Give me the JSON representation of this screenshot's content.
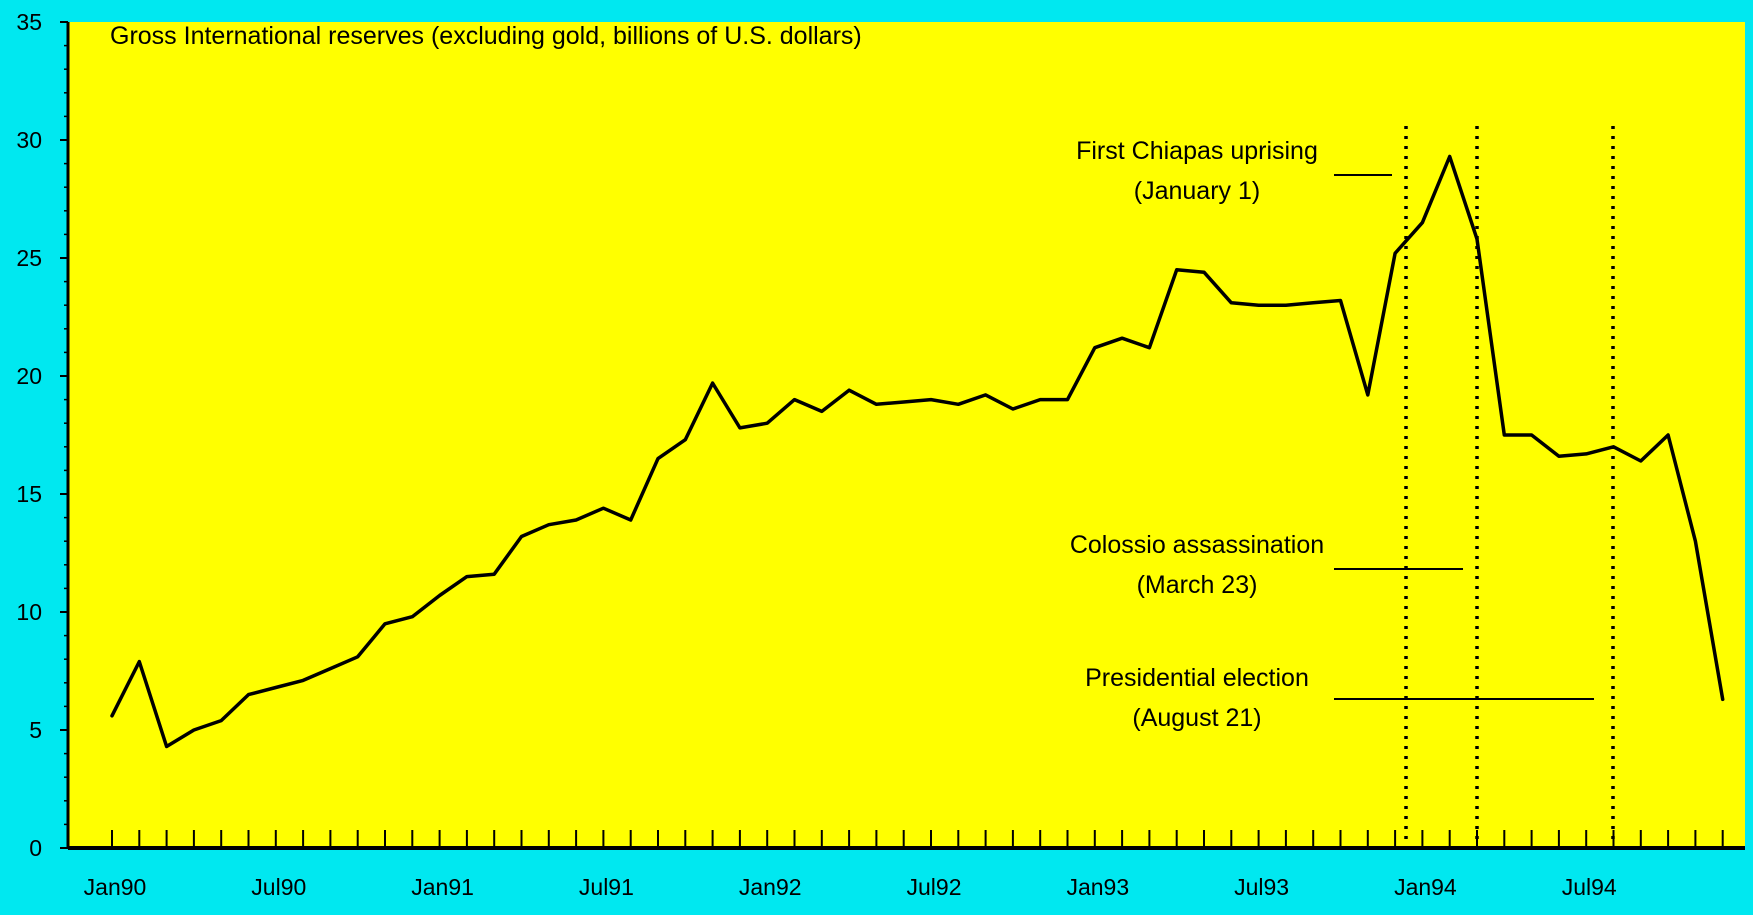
{
  "colors": {
    "page_background": "#00e8f0",
    "plot_background": "#ffff00",
    "line": "#000000",
    "axis": "#000000",
    "text": "#000000"
  },
  "chart_data": {
    "type": "line",
    "title": "Gross International reserves (excluding gold, billions of U.S. dollars)",
    "xlabel": "",
    "ylabel": "",
    "ylim": [
      0,
      35
    ],
    "yticks": [
      0,
      5,
      10,
      15,
      20,
      25,
      30,
      35
    ],
    "x_tick_labels": [
      "Jan90",
      "Jul90",
      "Jan91",
      "Jul91",
      "Jan92",
      "Jul92",
      "Jan93",
      "Jul93",
      "Jan94",
      "Jul94"
    ],
    "x": [
      "1990-01",
      "1990-02",
      "1990-03",
      "1990-04",
      "1990-05",
      "1990-06",
      "1990-07",
      "1990-08",
      "1990-09",
      "1990-10",
      "1990-11",
      "1990-12",
      "1991-01",
      "1991-02",
      "1991-03",
      "1991-04",
      "1991-05",
      "1991-06",
      "1991-07",
      "1991-08",
      "1991-09",
      "1991-10",
      "1991-11",
      "1991-12",
      "1992-01",
      "1992-02",
      "1992-03",
      "1992-04",
      "1992-05",
      "1992-06",
      "1992-07",
      "1992-08",
      "1992-09",
      "1992-10",
      "1992-11",
      "1992-12",
      "1993-01",
      "1993-02",
      "1993-03",
      "1993-04",
      "1993-05",
      "1993-06",
      "1993-07",
      "1993-08",
      "1993-09",
      "1993-10",
      "1993-11",
      "1993-12",
      "1994-01",
      "1994-02",
      "1994-03",
      "1994-04",
      "1994-05",
      "1994-06",
      "1994-07",
      "1994-08",
      "1994-09",
      "1994-10",
      "1994-11",
      "1994-12"
    ],
    "series": [
      {
        "values": [
          5.6,
          7.9,
          4.3,
          5.0,
          5.4,
          6.5,
          6.8,
          7.1,
          7.6,
          8.1,
          9.5,
          9.8,
          10.7,
          11.5,
          11.6,
          13.2,
          13.7,
          13.9,
          14.4,
          13.9,
          16.5,
          17.3,
          19.7,
          17.8,
          18.0,
          19.0,
          18.5,
          19.4,
          18.8,
          18.9,
          19.0,
          18.8,
          19.2,
          18.6,
          19.0,
          19.0,
          21.2,
          21.6,
          21.2,
          24.5,
          24.4,
          23.1,
          23.0,
          23.0,
          23.1,
          23.2,
          19.2,
          25.2,
          26.5,
          29.3,
          25.8,
          17.5,
          17.5,
          16.6,
          16.7,
          17.0,
          16.4,
          17.5,
          13.0,
          6.3
        ]
      }
    ],
    "annotations": [
      {
        "line1": "First Chiapas uprising",
        "line2": "(January 1)",
        "date": "1994-01"
      },
      {
        "line1": "Colossio assassination",
        "line2": "(March 23)",
        "date": "1994-03"
      },
      {
        "line1": "Presidential election",
        "line2": "(August 21)",
        "date": "1994-08"
      }
    ],
    "grid": false,
    "legend": "none"
  }
}
